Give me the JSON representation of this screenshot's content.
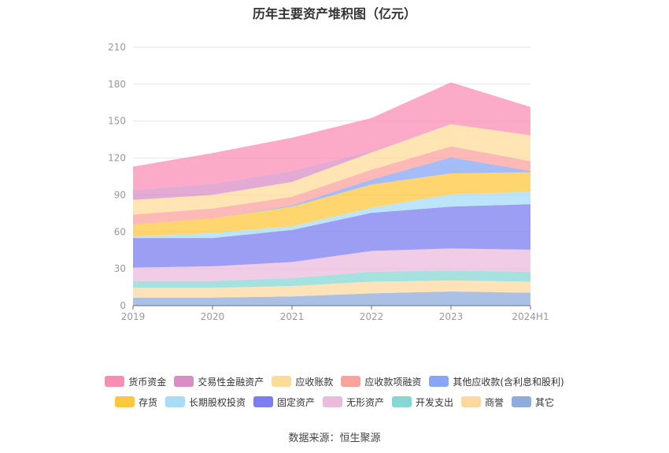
{
  "title": "历年主要资产堆积图（亿元）",
  "source": "数据来源：恒生聚源",
  "chart_data": {
    "type": "area",
    "stacked": true,
    "categories": [
      "2019",
      "2020",
      "2021",
      "2022",
      "2023",
      "2024H1"
    ],
    "ylim": [
      0,
      210
    ],
    "yticks": [
      0,
      30,
      60,
      90,
      120,
      150,
      180,
      210
    ],
    "grid": true,
    "legend_position": "bottom",
    "series": [
      {
        "name": "其它",
        "color": "#8eacdc",
        "values": [
          6.5,
          6.5,
          7.5,
          10,
          11.5,
          10.5
        ]
      },
      {
        "name": "商誉",
        "color": "#fdd9a0",
        "values": [
          8,
          8,
          8.5,
          9.5,
          9,
          9
        ]
      },
      {
        "name": "开发支出",
        "color": "#86d7d4",
        "values": [
          5.5,
          5.5,
          6.5,
          8,
          8,
          8
        ]
      },
      {
        "name": "无形资产",
        "color": "#ebbbdd",
        "values": [
          11,
          12,
          13,
          17,
          18,
          18
        ]
      },
      {
        "name": "固定资产",
        "color": "#7b7ef0",
        "values": [
          24,
          23,
          26,
          31,
          34,
          37
        ]
      },
      {
        "name": "长期股权投资",
        "color": "#a7dcf7",
        "values": [
          1,
          4,
          3,
          4,
          10,
          10
        ]
      },
      {
        "name": "存货",
        "color": "#fdc73f",
        "values": [
          10,
          12,
          16,
          19,
          17,
          16
        ]
      },
      {
        "name": "其他应收款(含利息和股利)",
        "color": "#88a6f6",
        "values": [
          0,
          0,
          1,
          4,
          13,
          1
        ]
      },
      {
        "name": "应收款项融资",
        "color": "#fca29c",
        "values": [
          8,
          8,
          7,
          8,
          9,
          8
        ]
      },
      {
        "name": "应收账款",
        "color": "#fddc9a",
        "values": [
          12,
          11,
          12,
          14,
          18,
          21
        ]
      },
      {
        "name": "交易性金融资产",
        "color": "#da8dc4",
        "values": [
          8,
          9,
          9,
          1,
          0,
          0
        ]
      },
      {
        "name": "货币资金",
        "color": "#f98eb5",
        "values": [
          19,
          25,
          27,
          27,
          34,
          23
        ]
      }
    ]
  }
}
